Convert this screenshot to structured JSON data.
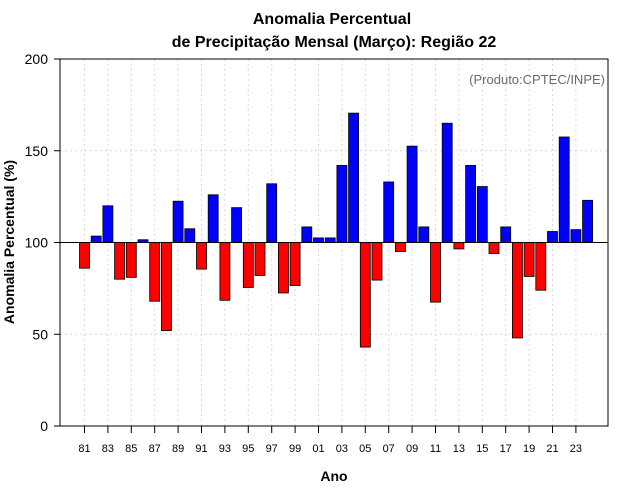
{
  "chart_data": {
    "type": "bar",
    "title_line1": "Anomalia Percentual",
    "title_line2": "de Precipitação Mensal (Março): Região 22",
    "xlabel": "Ano",
    "ylabel": "Anomalia Percentual (%)",
    "credit": "(Produto:CPTEC/INPE)",
    "baseline": 100,
    "ylim": [
      0,
      200
    ],
    "yticks": [
      0,
      50,
      100,
      150,
      200
    ],
    "categories": [
      "81",
      "82",
      "83",
      "84",
      "85",
      "86",
      "87",
      "88",
      "89",
      "90",
      "91",
      "92",
      "93",
      "94",
      "95",
      "96",
      "97",
      "98",
      "99",
      "00",
      "01",
      "02",
      "03",
      "04",
      "05",
      "06",
      "07",
      "08",
      "09",
      "10",
      "11",
      "12",
      "13",
      "14",
      "15",
      "16",
      "17",
      "18",
      "19",
      "20",
      "21",
      "22",
      "23",
      "24"
    ],
    "tick_labels": [
      "81",
      "83",
      "85",
      "87",
      "89",
      "91",
      "93",
      "95",
      "97",
      "99",
      "01",
      "03",
      "05",
      "07",
      "09",
      "11",
      "13",
      "15",
      "17",
      "19",
      "21",
      "23"
    ],
    "values": [
      86,
      103.5,
      120,
      80,
      81,
      101.5,
      68,
      52,
      122.5,
      107.5,
      85.5,
      126,
      68.5,
      119,
      75.5,
      82,
      132,
      72.5,
      76.5,
      108.5,
      102.5,
      102.5,
      142,
      170.5,
      43,
      79.5,
      133,
      95,
      152.5,
      108.5,
      67.5,
      165,
      96.5,
      142,
      130.5,
      94,
      108.5,
      48,
      81.5,
      74,
      106,
      157.5,
      107,
      123
    ],
    "colors": {
      "above": "#0000ff",
      "below": "#ff0000",
      "grid": "#d9d9d9",
      "credit": "#6a6a6a"
    }
  }
}
